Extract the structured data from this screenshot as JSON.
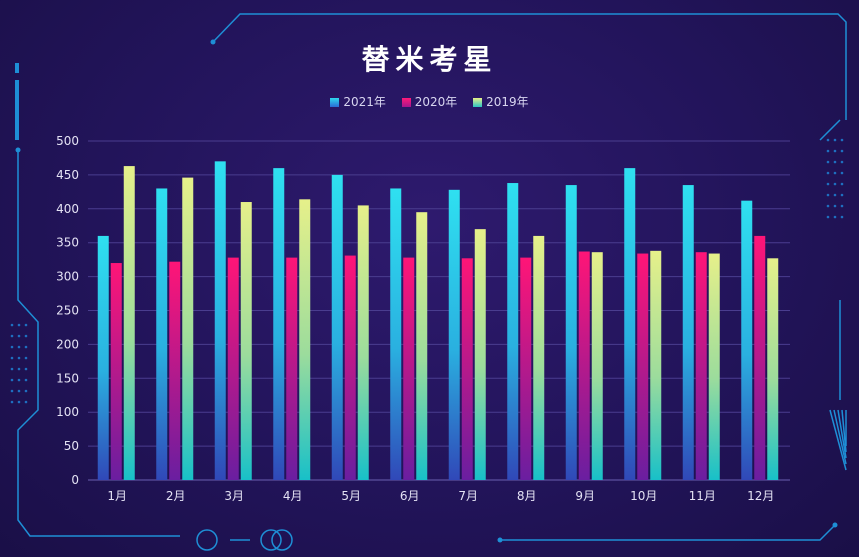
{
  "chart_data": {
    "type": "bar",
    "title": "替米考星",
    "categories": [
      "1月",
      "2月",
      "3月",
      "4月",
      "5月",
      "6月",
      "7月",
      "8月",
      "9月",
      "10月",
      "11月",
      "12月"
    ],
    "series": [
      {
        "name": "2021年",
        "color": "#27d3e8",
        "values": [
          360,
          430,
          470,
          460,
          450,
          430,
          428,
          438,
          435,
          460,
          435,
          412
        ]
      },
      {
        "name": "2020年",
        "color": "#e0127a",
        "values": [
          320,
          322,
          328,
          328,
          331,
          328,
          327,
          328,
          337,
          334,
          336,
          360
        ]
      },
      {
        "name": "2019年",
        "color": "#d4e985",
        "values": [
          463,
          446,
          410,
          414,
          405,
          395,
          370,
          360,
          336,
          338,
          334,
          327
        ]
      }
    ],
    "ylim": [
      0,
      500
    ],
    "yticks": [
      0,
      50,
      100,
      150,
      200,
      250,
      300,
      350,
      400,
      450,
      500
    ],
    "grid": true,
    "legend_position": "top-center"
  }
}
